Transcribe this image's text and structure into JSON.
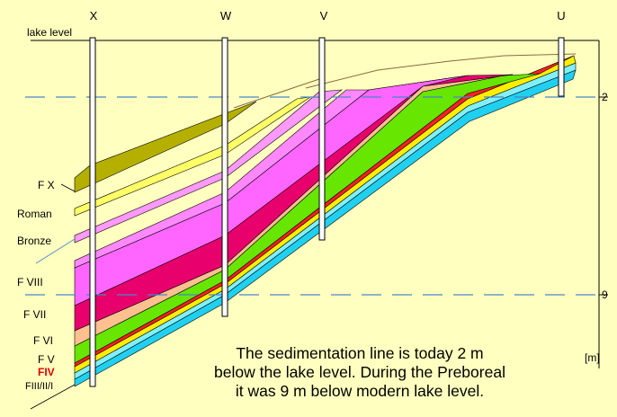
{
  "boreholes": [
    {
      "id": "borehole-x",
      "label": "X"
    },
    {
      "id": "borehole-w",
      "label": "W"
    },
    {
      "id": "borehole-v",
      "label": "V"
    },
    {
      "id": "borehole-u",
      "label": "U"
    }
  ],
  "lake_level_label": "lake level",
  "depth_markers": [
    {
      "id": "depth-marker-2",
      "label": "2"
    },
    {
      "id": "depth-marker-9",
      "label": "9"
    }
  ],
  "unit_label": "[m]",
  "layer_labels": [
    {
      "id": "label-f-x",
      "text": "F X"
    },
    {
      "id": "label-roman",
      "text": "Roman"
    },
    {
      "id": "label-bronze",
      "text": "Bronze"
    },
    {
      "id": "label-f-viii",
      "text": "F VIII"
    },
    {
      "id": "label-f-vii",
      "text": "F VII"
    },
    {
      "id": "label-f-vi",
      "text": "F VI"
    },
    {
      "id": "label-f-v",
      "text": "F V"
    },
    {
      "id": "label-fiv",
      "text": "FIV"
    },
    {
      "id": "label-fiii-ii-i",
      "text": "FIII/II/I"
    }
  ],
  "caption": {
    "line1": "The sedimentation line is today 2 m",
    "line2": "below the lake level. During the Preboreal",
    "line3": "it was 9 m below modern lake level."
  },
  "colors": {
    "background": "#ffffc0",
    "water_line": "#4a86c8",
    "layer_olive": "#b5b000",
    "layer_yellow": "#ffff66",
    "layer_pink_light": "#ff88ff",
    "layer_pink_strong": "#ff66ff",
    "layer_crimson": "#e8006c",
    "layer_peach": "#ffc090",
    "layer_green": "#66e600",
    "layer_red": "#ff2020",
    "layer_yellow_base": "#ffee00",
    "layer_cyan": "#20d0f0",
    "layer_lightcyan": "#80f0ff",
    "label_red": "#e00000"
  }
}
